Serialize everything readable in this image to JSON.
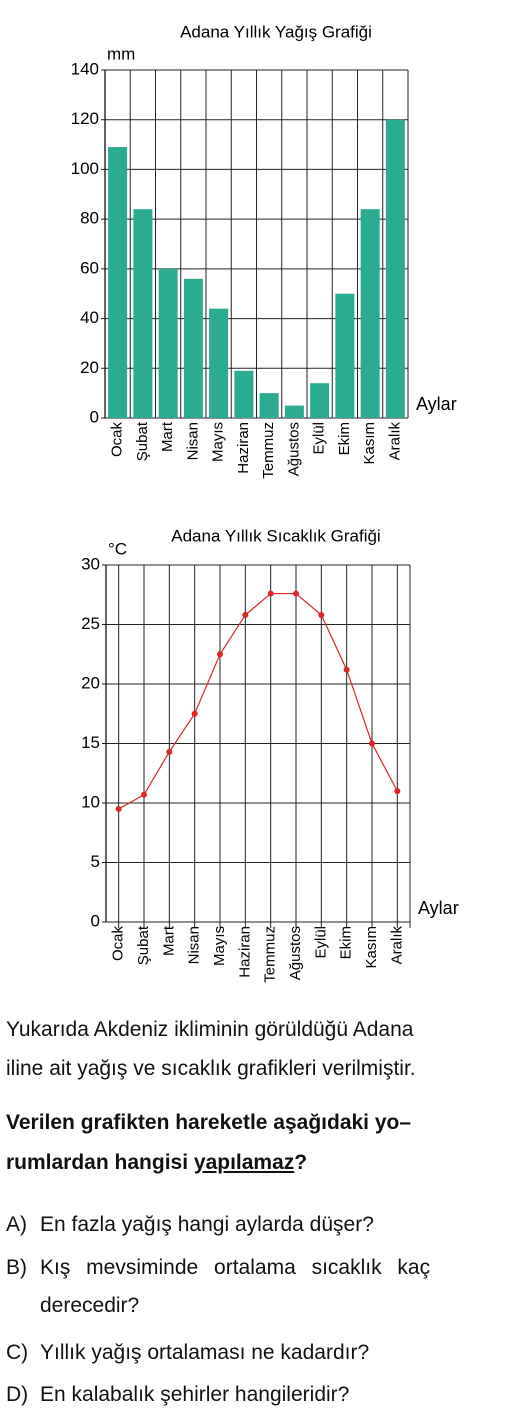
{
  "chart_data": [
    {
      "type": "bar",
      "title": "Adana Yıllık Yağış Grafiği",
      "y_label": "mm",
      "x_label": "Aylar",
      "categories": [
        "Ocak",
        "Şubat",
        "Mart",
        "Nisan",
        "Mayıs",
        "Haziran",
        "Temmuz",
        "Ağustos",
        "Eylül",
        "Ekim",
        "Kasım",
        "Aralık"
      ],
      "values": [
        109,
        84,
        60,
        56,
        44,
        19,
        10,
        5,
        14,
        50,
        84,
        120
      ],
      "color": "#2aab92",
      "ylim": [
        0,
        140
      ],
      "yticks": [
        0,
        20,
        40,
        60,
        80,
        100,
        120,
        140
      ],
      "grid": true
    },
    {
      "type": "line",
      "title": "Adana Yıllık Sıcaklık Grafiği",
      "y_label": "°C",
      "x_label": "Aylar",
      "categories": [
        "Ocak",
        "Şubat",
        "Mart",
        "Nisan",
        "Mayıs",
        "Haziran",
        "Temmuz",
        "Ağustos",
        "Eylül",
        "Ekim",
        "Kasım",
        "Aralık"
      ],
      "values": [
        9.5,
        10.7,
        14.3,
        17.5,
        22.5,
        25.8,
        27.6,
        27.6,
        25.8,
        21.2,
        15,
        11
      ],
      "color": "#e02424",
      "ylim": [
        0,
        30
      ],
      "yticks": [
        0,
        5,
        10,
        15,
        20,
        25,
        30
      ],
      "grid": true
    }
  ],
  "intro": {
    "lines": [
      "Yukarıda Akdeniz ikliminin görüldüğü Adana",
      "iline ait yağış ve sıcaklık grafikleri verilmiştir."
    ]
  },
  "question": {
    "line1": "Verilen grafikten hareketle aşağıdaki yo–",
    "line2_start": "rumlardan hangisi",
    "line2_underlined": "yapılamaz",
    "line2_end": "?"
  },
  "options": [
    {
      "letter": "A)",
      "lines": [
        "En fazla yağış hangi aylarda düşer?"
      ]
    },
    {
      "letter": "B)",
      "lines": [
        "Kış mevsiminde ortalama sıcaklık kaç",
        "derecedir?"
      ]
    },
    {
      "letter": "C)",
      "lines": [
        "Yıllık yağış ortalaması ne kadardır?"
      ]
    },
    {
      "letter": "D)",
      "lines": [
        "En kalabalık şehirler hangileridir?"
      ]
    }
  ]
}
